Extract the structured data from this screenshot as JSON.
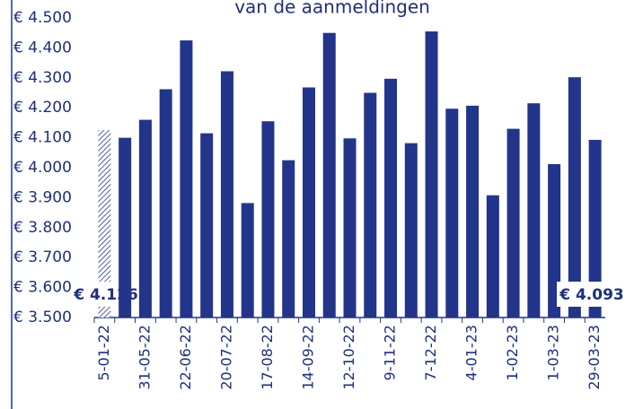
{
  "chart_data": {
    "type": "bar",
    "title": "van de aanmeldingen",
    "categories": [
      "5-01-22",
      null,
      "31-05-22",
      null,
      "22-06-22",
      null,
      "20-07-22",
      null,
      "17-08-22",
      null,
      "14-09-22",
      null,
      "12-10-22",
      null,
      "9-11-22",
      null,
      "7-12-22",
      null,
      "4-01-23",
      null,
      "1-02-23",
      null,
      "1-03-23",
      null,
      "29-03-23"
    ],
    "values": [
      4126,
      4100,
      4160,
      4262,
      4425,
      4115,
      4322,
      3882,
      4155,
      4025,
      4268,
      4450,
      4098,
      4250,
      4297,
      4082,
      4455,
      4197,
      4207,
      3908,
      4130,
      4215,
      4012,
      4302,
      4093
    ],
    "value_labels": [
      "€ 4.126",
      null,
      null,
      null,
      null,
      null,
      null,
      null,
      null,
      null,
      null,
      null,
      null,
      null,
      null,
      null,
      null,
      null,
      null,
      null,
      null,
      null,
      null,
      null,
      "€ 4.093"
    ],
    "hatched": [
      0
    ],
    "color": "#22358a",
    "ylim": [
      3500,
      4500
    ],
    "yticks": [
      {
        "value": 3500,
        "label": "€ 3.500"
      },
      {
        "value": 3600,
        "label": "€ 3.600"
      },
      {
        "value": 3700,
        "label": "€ 3.700"
      },
      {
        "value": 3800,
        "label": "€ 3.800"
      },
      {
        "value": 3900,
        "label": "€ 3.900"
      },
      {
        "value": 4000,
        "label": "€ 4.000"
      },
      {
        "value": 4100,
        "label": "€ 4.100"
      },
      {
        "value": 4200,
        "label": "€ 4.200"
      },
      {
        "value": 4300,
        "label": "€ 4.300"
      },
      {
        "value": 4400,
        "label": "€ 4.400"
      },
      {
        "value": 4500,
        "label": "€ 4.500"
      }
    ],
    "grid": false
  }
}
